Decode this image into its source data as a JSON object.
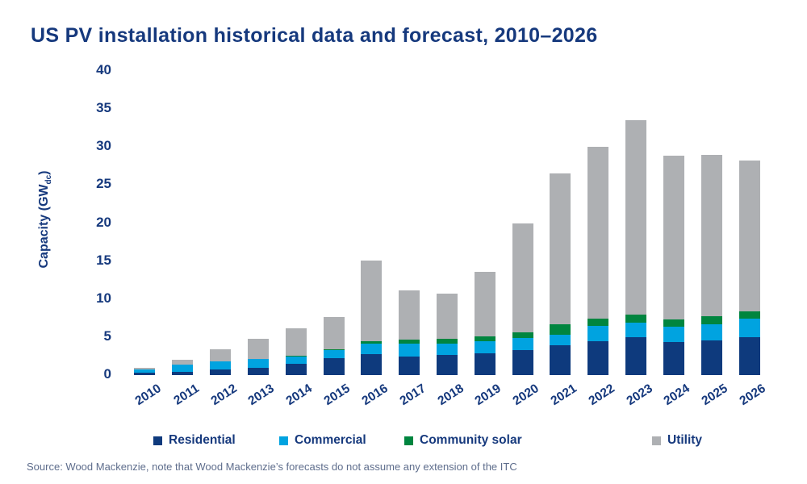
{
  "title": "US PV installation historical data and forecast, 2010–2026",
  "source": "Source: Wood Mackenzie, note that Wood Mackenzie’s forecasts do not assume any extension of the ITC",
  "colors": {
    "residential": "#0e3a7d",
    "commercial": "#00a3e0",
    "community_solar": "#00853f",
    "utility": "#aeb0b3",
    "text_navy": "#16397d",
    "source_text": "#5e6d8c"
  },
  "y_axis": {
    "label_main": "Capacity (GW",
    "label_sub": "dc",
    "label_close": ")"
  },
  "chart_data": {
    "type": "bar",
    "stacked": true,
    "title": "US PV installation historical data and forecast, 2010–2026",
    "xlabel": "",
    "ylabel": "Capacity (GWdc)",
    "ylim": [
      0,
      40
    ],
    "yticks": [
      0,
      5,
      10,
      15,
      20,
      25,
      30,
      35,
      40
    ],
    "grid": false,
    "legend_position": "bottom",
    "categories": [
      "2010",
      "2011",
      "2012",
      "2013",
      "2014",
      "2015",
      "2016",
      "2017",
      "2018",
      "2019",
      "2020",
      "2021",
      "2022",
      "2023",
      "2024",
      "2025",
      "2026"
    ],
    "series": [
      {
        "name": "Residential",
        "color": "#0e3a7d",
        "values": [
          0.35,
          0.45,
          0.75,
          0.95,
          1.45,
          2.25,
          2.8,
          2.4,
          2.6,
          2.9,
          3.3,
          3.9,
          4.45,
          4.95,
          4.35,
          4.6,
          5.0
        ]
      },
      {
        "name": "Commercial",
        "color": "#00a3e0",
        "values": [
          0.35,
          0.9,
          1.1,
          1.2,
          0.95,
          1.05,
          1.3,
          1.7,
          1.55,
          1.6,
          1.6,
          1.45,
          2.0,
          1.95,
          2.0,
          2.1,
          2.4
        ]
      },
      {
        "name": "Community solar",
        "color": "#00853f",
        "values": [
          0,
          0,
          0,
          0,
          0.1,
          0.1,
          0.35,
          0.55,
          0.6,
          0.6,
          0.75,
          1.3,
          1.0,
          1.1,
          0.95,
          1.05,
          0.95
        ]
      },
      {
        "name": "Utility",
        "color": "#aeb0b3",
        "values": [
          0.3,
          0.65,
          1.55,
          2.65,
          3.7,
          4.2,
          10.65,
          6.45,
          6.0,
          8.5,
          14.25,
          19.9,
          22.55,
          25.5,
          21.6,
          21.25,
          19.9
        ]
      }
    ],
    "totals": [
      1.0,
      2.0,
      3.4,
      4.8,
      6.2,
      7.6,
      15.1,
      11.1,
      10.75,
      13.6,
      19.9,
      26.55,
      30.0,
      33.5,
      28.9,
      29.0,
      28.25
    ]
  },
  "legend": {
    "items": [
      {
        "label": "Residential",
        "color": "#0e3a7d"
      },
      {
        "label": "Commercial",
        "color": "#00a3e0"
      },
      {
        "label": "Community solar",
        "color": "#00853f"
      },
      {
        "label": "Utility",
        "color": "#aeb0b3"
      }
    ]
  }
}
